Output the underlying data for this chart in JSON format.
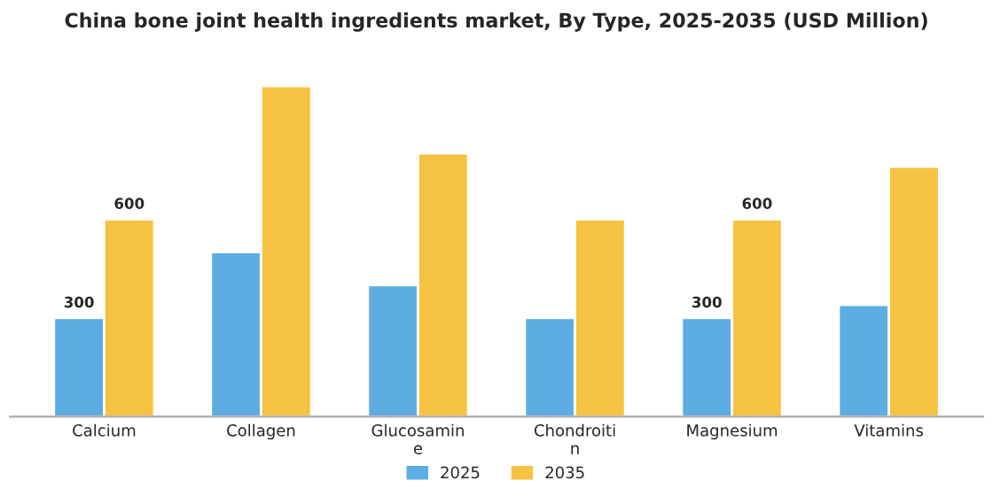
{
  "chart_data": {
    "type": "bar",
    "title": "China bone joint health ingredients market, By Type, 2025-2035 (USD Million)",
    "categories": [
      "Calcium",
      "Collagen",
      "Glucosamine",
      "Chondroitin",
      "Magnesium",
      "Vitamins"
    ],
    "series": [
      {
        "name": "2025",
        "color": "#5dade2",
        "values": [
          300,
          500,
          400,
          300,
          300,
          340
        ],
        "value_labels": [
          "300",
          null,
          null,
          null,
          "300",
          null
        ]
      },
      {
        "name": "2035",
        "color": "#f5c242",
        "values": [
          600,
          1005,
          800,
          600,
          600,
          760
        ],
        "value_labels": [
          "600",
          null,
          null,
          null,
          "600",
          null
        ]
      }
    ],
    "legend": "bottom",
    "grid": false
  }
}
